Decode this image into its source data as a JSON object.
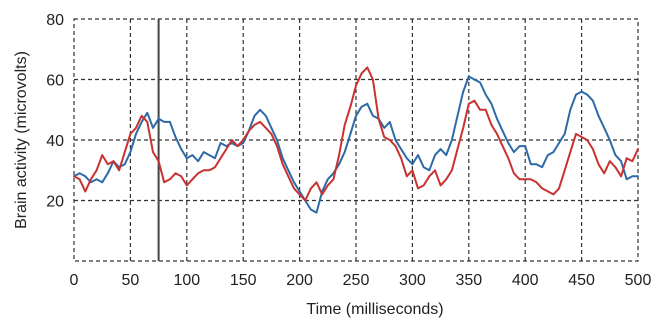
{
  "chart_data": {
    "type": "line",
    "title": "",
    "xlabel": "Time (milliseconds)",
    "ylabel": "Brain activity (microvolts)",
    "xlim": [
      0,
      500
    ],
    "ylim": [
      0,
      80
    ],
    "x_ticks": [
      0,
      50,
      100,
      150,
      200,
      250,
      300,
      350,
      400,
      450,
      500
    ],
    "y_ticks": [
      20,
      40,
      60,
      80
    ],
    "grid": true,
    "grid_style": "dashed",
    "vertical_marker_x": 75,
    "series": [
      {
        "color": "#2d6aa8",
        "x": [
          0,
          5,
          10,
          15,
          20,
          25,
          30,
          35,
          40,
          45,
          50,
          55,
          60,
          65,
          70,
          75,
          80,
          85,
          90,
          95,
          100,
          105,
          110,
          115,
          120,
          125,
          130,
          135,
          140,
          145,
          150,
          155,
          160,
          165,
          170,
          175,
          180,
          185,
          190,
          195,
          200,
          205,
          210,
          215,
          220,
          225,
          230,
          235,
          240,
          245,
          250,
          255,
          260,
          265,
          270,
          275,
          280,
          285,
          290,
          295,
          300,
          305,
          310,
          315,
          320,
          325,
          330,
          335,
          340,
          345,
          350,
          355,
          360,
          365,
          370,
          375,
          380,
          385,
          390,
          395,
          400,
          405,
          410,
          415,
          420,
          425,
          430,
          435,
          440,
          445,
          450,
          455,
          460,
          465,
          470,
          475,
          480,
          485,
          490,
          495,
          500
        ],
        "values": [
          28,
          29,
          28,
          26,
          27,
          26,
          29,
          33,
          31,
          32,
          36,
          42,
          46,
          49,
          44,
          47,
          46,
          46,
          41,
          37,
          34,
          35,
          33,
          36,
          35,
          34,
          39,
          38,
          39,
          38,
          39,
          43,
          48,
          50,
          48,
          44,
          40,
          34,
          30,
          26,
          23,
          20,
          17,
          16,
          23,
          27,
          29,
          32,
          36,
          42,
          48,
          51,
          52,
          48,
          47,
          44,
          46,
          40,
          37,
          34,
          32,
          35,
          31,
          30,
          35,
          37,
          35,
          40,
          48,
          56,
          61,
          60,
          59,
          55,
          52,
          47,
          43,
          39,
          36,
          38,
          38,
          32,
          32,
          31,
          35,
          36,
          39,
          42,
          50,
          55,
          56,
          55,
          53,
          48,
          44,
          40,
          35,
          33,
          27,
          28,
          28
        ]
      },
      {
        "color": "#c93230",
        "x": [
          0,
          5,
          10,
          15,
          20,
          25,
          30,
          35,
          40,
          45,
          50,
          55,
          60,
          65,
          70,
          75,
          80,
          85,
          90,
          95,
          100,
          105,
          110,
          115,
          120,
          125,
          130,
          135,
          140,
          145,
          150,
          155,
          160,
          165,
          170,
          175,
          180,
          185,
          190,
          195,
          200,
          205,
          210,
          215,
          220,
          225,
          230,
          235,
          240,
          245,
          250,
          255,
          260,
          265,
          270,
          275,
          280,
          285,
          290,
          295,
          300,
          305,
          310,
          315,
          320,
          325,
          330,
          335,
          340,
          345,
          350,
          355,
          360,
          365,
          370,
          375,
          380,
          385,
          390,
          395,
          400,
          405,
          410,
          415,
          420,
          425,
          430,
          435,
          440,
          445,
          450,
          455,
          460,
          465,
          470,
          475,
          480,
          485,
          490,
          495,
          500
        ],
        "values": [
          28,
          27,
          23,
          27,
          30,
          35,
          32,
          33,
          30,
          36,
          42,
          44,
          48,
          46,
          36,
          33,
          26,
          27,
          29,
          28,
          25,
          27,
          29,
          30,
          30,
          31,
          34,
          37,
          40,
          38,
          40,
          43,
          45,
          46,
          44,
          42,
          38,
          32,
          28,
          24,
          22,
          20,
          24,
          26,
          22,
          25,
          27,
          35,
          45,
          51,
          58,
          62,
          64,
          60,
          47,
          41,
          40,
          38,
          34,
          28,
          30,
          24,
          25,
          28,
          30,
          25,
          27,
          30,
          37,
          44,
          52,
          53,
          50,
          50,
          45,
          42,
          38,
          34,
          29,
          27,
          27,
          27,
          26,
          24,
          23,
          22,
          24,
          30,
          36,
          42,
          41,
          40,
          37,
          32,
          29,
          33,
          31,
          28,
          34,
          33,
          37
        ]
      }
    ]
  }
}
